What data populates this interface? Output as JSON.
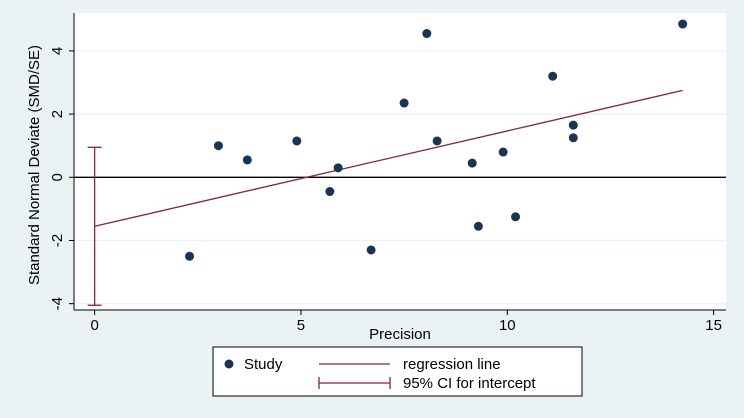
{
  "chart_data": {
    "type": "scatter",
    "title": "",
    "xlabel": "Precision",
    "ylabel": "Standard Normal Deviate (SMD/SE)",
    "xlim": [
      -0.5,
      15.3
    ],
    "ylim": [
      -4.2,
      5.2
    ],
    "xticks": [
      0,
      5,
      10,
      15
    ],
    "xtick_labels": [
      "0",
      "5",
      "10",
      "15"
    ],
    "yticks": [
      -4,
      -2,
      0,
      2,
      4
    ],
    "ytick_labels": [
      "-4",
      "-2",
      "0",
      "2",
      "4"
    ],
    "grid": "horizontal",
    "series": [
      {
        "name": "Study",
        "points": [
          {
            "x": 2.3,
            "y": -2.5
          },
          {
            "x": 3.0,
            "y": 1.0
          },
          {
            "x": 3.7,
            "y": 0.55
          },
          {
            "x": 4.9,
            "y": 1.15
          },
          {
            "x": 5.7,
            "y": -0.45
          },
          {
            "x": 5.9,
            "y": 0.3
          },
          {
            "x": 6.7,
            "y": -2.3
          },
          {
            "x": 7.5,
            "y": 2.35
          },
          {
            "x": 8.05,
            "y": 4.55
          },
          {
            "x": 8.3,
            "y": 1.15
          },
          {
            "x": 9.15,
            "y": 0.45
          },
          {
            "x": 9.3,
            "y": -1.55
          },
          {
            "x": 9.9,
            "y": 0.8
          },
          {
            "x": 10.2,
            "y": -1.25
          },
          {
            "x": 11.1,
            "y": 3.2
          },
          {
            "x": 11.6,
            "y": 1.65
          },
          {
            "x": 11.6,
            "y": 1.25
          },
          {
            "x": 14.25,
            "y": 4.85
          }
        ]
      }
    ],
    "regression_line": {
      "name": "regression line",
      "x": [
        0,
        14.25
      ],
      "y": [
        -1.55,
        2.75
      ]
    },
    "ci_intercept": {
      "name": "95% CI for intercept",
      "x": 0,
      "low": -4.05,
      "high": 0.95
    },
    "reference_line": {
      "y": 0
    },
    "legend": {
      "placement": "bottom",
      "entries": [
        "Study",
        "regression line",
        "95% CI for intercept"
      ]
    },
    "colors": {
      "background": "#eaf2f3",
      "plot_background": "#ffffff",
      "marker": "#1a3553",
      "regression": "#8b2330",
      "reference": "#000000",
      "grid": "#eaf2f3"
    }
  }
}
